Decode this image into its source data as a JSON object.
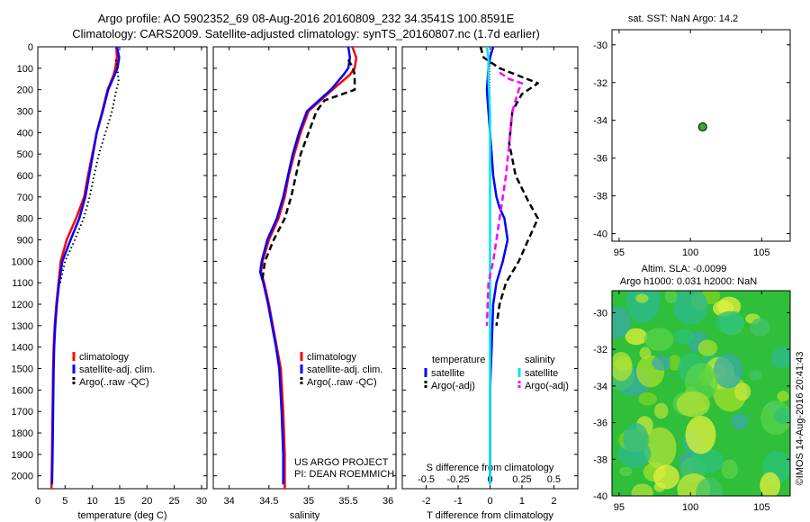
{
  "title_line1": "Argo profile: AO 5902352_69 08-Aug-2016 20160809_232 34.3541S 100.8591E",
  "title_line2": "Climatology: CARS2009. Satellite-adjusted climatology: synTS_20160807.nc (1.7d earlier)",
  "credit_line1": "US ARGO PROJECT",
  "credit_line2": "PI: DEAN ROEMMICH",
  "copyright": "©IMOS 14-Aug-2016 20:41:43",
  "sst_title": "sat. SST: NaN Argo: 14.2",
  "sla_title1": "Altim. SLA: -0.0099",
  "sla_title2": "Argo h1000: 0.031 h2000: NaN",
  "colors": {
    "climatology": "#ff0000",
    "satellite": "#0000ff",
    "argo": "#000000",
    "sal_satellite": "#00e5e5",
    "sal_argo": "#ff00ff",
    "marker": "#33aa33"
  },
  "chart_data": [
    {
      "type": "line",
      "name": "temperature-profile",
      "xlabel": "temperature (deg C)",
      "ylabel": "",
      "xlim": [
        0,
        31
      ],
      "ylim": [
        2060,
        0
      ],
      "xticks": [
        "0",
        "5",
        "10",
        "15",
        "20",
        "25",
        "30"
      ],
      "yticks": [
        "0",
        "100",
        "200",
        "300",
        "400",
        "500",
        "600",
        "700",
        "800",
        "900",
        "1000",
        "1100",
        "1200",
        "1300",
        "1400",
        "1500",
        "1600",
        "1700",
        "1800",
        "1900",
        "2000"
      ],
      "legend": {
        "position": "lower-left",
        "entries": [
          "climatology",
          "satellite-adj. clim.",
          "Argo(..raw -QC)"
        ]
      },
      "series": [
        {
          "name": "climatology",
          "style": "solid",
          "color": "#ff0000",
          "x": [
            14.4,
            14.5,
            14.2,
            13.9,
            12.8,
            11.8,
            10.8,
            10.0,
            9.2,
            8.5,
            7.0,
            5.3,
            4.2,
            3.8,
            3.4,
            3.1,
            2.9,
            2.8,
            2.7,
            2.6,
            2.5
          ],
          "y": [
            0,
            50,
            100,
            130,
            200,
            300,
            400,
            500,
            600,
            700,
            800,
            900,
            1000,
            1100,
            1200,
            1300,
            1400,
            1500,
            1700,
            1900,
            2060
          ]
        },
        {
          "name": "satellite-adj. clim.",
          "style": "solid",
          "color": "#0000ff",
          "x": [
            14.5,
            14.9,
            14.6,
            14.1,
            12.9,
            11.9,
            10.8,
            10.1,
            9.4,
            8.7,
            7.6,
            6.0,
            4.5,
            3.9,
            3.5,
            3.2,
            3.0,
            2.9,
            2.8,
            2.7,
            2.6
          ],
          "y": [
            0,
            50,
            100,
            130,
            200,
            300,
            400,
            500,
            600,
            700,
            800,
            900,
            1000,
            1100,
            1200,
            1300,
            1400,
            1500,
            1700,
            1900,
            2040
          ]
        },
        {
          "name": "Argo(..raw -QC)",
          "style": "dotted",
          "color": "#000000",
          "x": [
            14.3,
            14.6,
            14.7,
            14.8,
            14.4,
            13.6,
            12.4,
            11.2,
            10.3,
            9.5,
            8.4,
            6.8,
            5.0,
            4.1
          ],
          "y": [
            60,
            100,
            130,
            160,
            200,
            300,
            400,
            500,
            600,
            700,
            800,
            900,
            1000,
            1100
          ]
        }
      ]
    },
    {
      "type": "line",
      "name": "salinity-profile",
      "xlabel": "salinity",
      "xlim": [
        33.8,
        36.1
      ],
      "ylim": [
        2060,
        0
      ],
      "xticks": [
        "34",
        "34.5",
        "35",
        "35.5",
        "36"
      ],
      "legend": {
        "position": "lower-right",
        "entries": [
          "climatology",
          "satellite-adj. clim.",
          "Argo(..raw -QC)"
        ]
      },
      "series": [
        {
          "name": "climatology",
          "style": "solid",
          "color": "#ff0000",
          "x": [
            35.55,
            35.6,
            35.58,
            35.52,
            35.3,
            35.0,
            34.9,
            34.82,
            34.75,
            34.7,
            34.62,
            34.5,
            34.42,
            34.4,
            34.44,
            34.5,
            34.55,
            34.6,
            34.65,
            34.68,
            34.7,
            34.7
          ],
          "y": [
            0,
            50,
            100,
            130,
            200,
            300,
            400,
            500,
            600,
            700,
            800,
            900,
            1000,
            1050,
            1100,
            1200,
            1300,
            1400,
            1500,
            1700,
            1900,
            2060
          ]
        },
        {
          "name": "satellite-adj. clim.",
          "style": "solid",
          "color": "#0000ff",
          "x": [
            35.5,
            35.52,
            35.5,
            35.44,
            35.28,
            34.98,
            34.88,
            34.8,
            34.74,
            34.68,
            34.6,
            34.48,
            34.41,
            34.39,
            34.43,
            34.49,
            34.54,
            34.59,
            34.63,
            34.66,
            34.68,
            34.68
          ],
          "y": [
            0,
            50,
            100,
            130,
            200,
            300,
            400,
            500,
            600,
            700,
            800,
            900,
            1000,
            1050,
            1100,
            1200,
            1300,
            1400,
            1500,
            1700,
            1900,
            2040
          ]
        },
        {
          "name": "Argo(..raw -QC)",
          "style": "dashed",
          "color": "#000000",
          "x": [
            35.5,
            35.56,
            35.58,
            35.58,
            35.2,
            35.1,
            35.0,
            34.9,
            34.84,
            34.78,
            34.7,
            34.56,
            34.45,
            34.42
          ],
          "y": [
            60,
            100,
            130,
            200,
            250,
            300,
            400,
            500,
            600,
            700,
            800,
            900,
            1000,
            1080
          ]
        }
      ]
    },
    {
      "type": "line",
      "name": "difference-profile",
      "xlabel": "T difference from climatology",
      "xlabel2": "S difference from climatology",
      "xlim": [
        -2.75,
        2.75
      ],
      "ylim": [
        2060,
        0
      ],
      "xticks": [
        "-2",
        "-1",
        "0",
        "1",
        "2"
      ],
      "xticks2": [
        "-0.5",
        "-0.25",
        "0",
        "0.25",
        "0.5"
      ],
      "legend_headers": [
        "temperature",
        "salinity"
      ],
      "legend_entries": [
        [
          "satellite",
          "Argo(-adj)"
        ],
        [
          "satellite",
          "Argo(-adj)"
        ]
      ],
      "series": [
        {
          "name": "temperature satellite",
          "style": "solid",
          "color": "#0000ff",
          "x": [
            0.1,
            0.0,
            -0.05,
            -0.1,
            -0.05,
            0.0,
            0.05,
            0.1,
            0.2,
            0.3,
            0.45,
            0.55,
            0.4,
            0.2,
            0.1,
            0.05,
            0.0,
            0.0,
            0.0
          ],
          "y": [
            0,
            50,
            100,
            200,
            300,
            400,
            500,
            600,
            700,
            750,
            800,
            900,
            1000,
            1100,
            1200,
            1400,
            1600,
            1800,
            2040
          ]
        },
        {
          "name": "temperature Argo(-adj)",
          "style": "dashed",
          "color": "#000000",
          "x": [
            -0.3,
            -0.2,
            0.3,
            1.5,
            1.0,
            0.7,
            0.6,
            0.8,
            1.2,
            1.5,
            1.2,
            0.9,
            0.5,
            0.3,
            0.2
          ],
          "y": [
            0,
            50,
            100,
            170,
            220,
            300,
            450,
            600,
            720,
            800,
            900,
            1000,
            1100,
            1200,
            1300
          ]
        },
        {
          "name": "salinity satellite",
          "style": "solid",
          "color": "#00e5e5",
          "x": [
            -0.1,
            -0.05,
            -0.05,
            0.0,
            0.0,
            0.0,
            0.0,
            0.0,
            0.0,
            0.0,
            0.0,
            0.0,
            0.0
          ],
          "y": [
            0,
            50,
            150,
            300,
            500,
            700,
            900,
            1100,
            1300,
            1500,
            1700,
            1900,
            2040
          ]
        },
        {
          "name": "salinity Argo(-adj)",
          "style": "dashed",
          "color": "#ff00ff",
          "x": [
            0.3,
            0.6,
            1.0,
            0.9,
            0.7,
            0.6,
            0.5,
            0.4,
            0.3,
            0.2,
            0.1,
            -0.05,
            -0.1
          ],
          "y": [
            120,
            150,
            170,
            200,
            300,
            450,
            600,
            700,
            800,
            900,
            1000,
            1100,
            1300
          ]
        }
      ]
    },
    {
      "type": "scatter",
      "name": "sst-map",
      "xlim": [
        94.5,
        107
      ],
      "ylim": [
        -40.4,
        -29.2
      ],
      "xticks": [
        "95",
        "100",
        "105"
      ],
      "yticks": [
        "-30",
        "-32",
        "-34",
        "-36",
        "-38",
        "-40"
      ],
      "points": [
        {
          "x": 100.86,
          "y": -34.35
        }
      ]
    },
    {
      "type": "heatmap",
      "name": "sla-map",
      "xlim": [
        94.5,
        107
      ],
      "ylim": [
        -40,
        -28.8
      ],
      "xticks": [
        "95",
        "100",
        "105"
      ],
      "yticks": [
        "-30",
        "-32",
        "-34",
        "-36",
        "-38",
        "-40"
      ]
    }
  ]
}
